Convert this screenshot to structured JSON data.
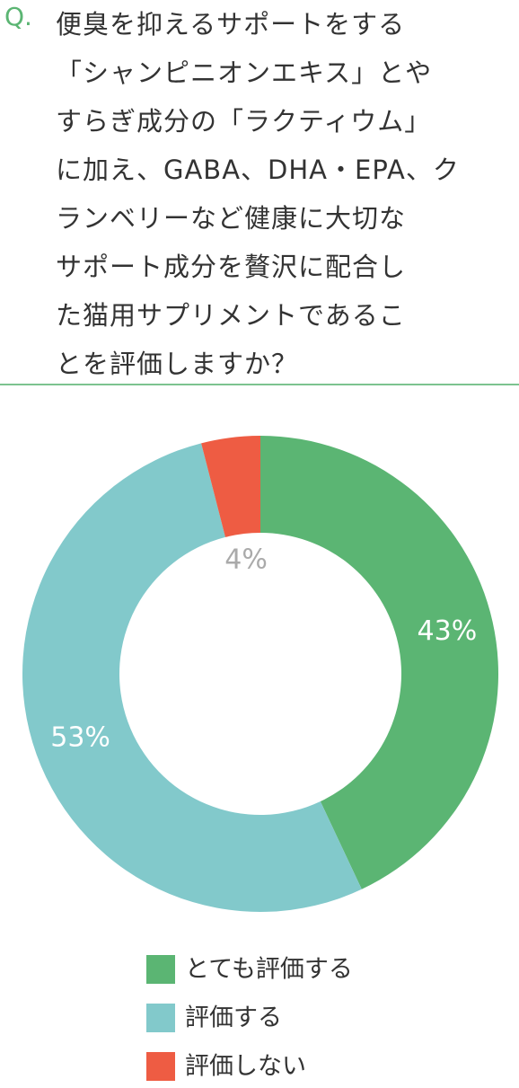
{
  "question": {
    "prefix": "Q.",
    "lines": [
      "便臭を抑えるサポートをする",
      "「シャンピニオンエキス」とや",
      "すらぎ成分の「ラクティウム」",
      "に加え、GABA、DHA・EPA、ク",
      "ランベリーなど健康に大切な",
      "サポート成分を贅沢に配合し",
      "た猫用サプリメントであるこ",
      "とを評価しますか？"
    ]
  },
  "chart_data": {
    "type": "donut",
    "categories": [
      "とても評価する",
      "評価する",
      "評価しない"
    ],
    "values": [
      43,
      53,
      4
    ],
    "value_labels": [
      "43%",
      "53%",
      "4%"
    ],
    "colors": [
      "#5bb573",
      "#82c9cb",
      "#ee5c43"
    ]
  }
}
